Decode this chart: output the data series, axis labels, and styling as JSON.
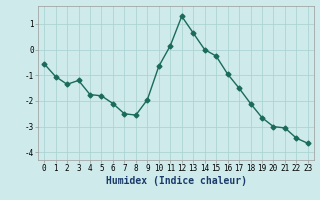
{
  "x": [
    0,
    1,
    2,
    3,
    4,
    5,
    6,
    7,
    8,
    9,
    10,
    11,
    12,
    13,
    14,
    15,
    16,
    17,
    18,
    19,
    20,
    21,
    22,
    23
  ],
  "y": [
    -0.55,
    -1.05,
    -1.35,
    -1.2,
    -1.75,
    -1.8,
    -2.1,
    -2.5,
    -2.55,
    -1.95,
    -0.65,
    0.15,
    1.3,
    0.65,
    0.0,
    -0.25,
    -0.95,
    -1.5,
    -2.1,
    -2.65,
    -3.0,
    -3.05,
    -3.45,
    -3.65
  ],
  "line_color": "#1a6b5a",
  "marker": "D",
  "markersize": 2.5,
  "linewidth": 1.0,
  "bg_color": "#ceeaea",
  "grid_color": "#add4d4",
  "xlabel": "Humidex (Indice chaleur)",
  "xlim": [
    -0.5,
    23.5
  ],
  "ylim": [
    -4.3,
    1.7
  ],
  "yticks": [
    -4,
    -3,
    -2,
    -1,
    0,
    1
  ],
  "xticks": [
    0,
    1,
    2,
    3,
    4,
    5,
    6,
    7,
    8,
    9,
    10,
    11,
    12,
    13,
    14,
    15,
    16,
    17,
    18,
    19,
    20,
    21,
    22,
    23
  ],
  "tick_fontsize": 5.5,
  "xlabel_fontsize": 7.0
}
